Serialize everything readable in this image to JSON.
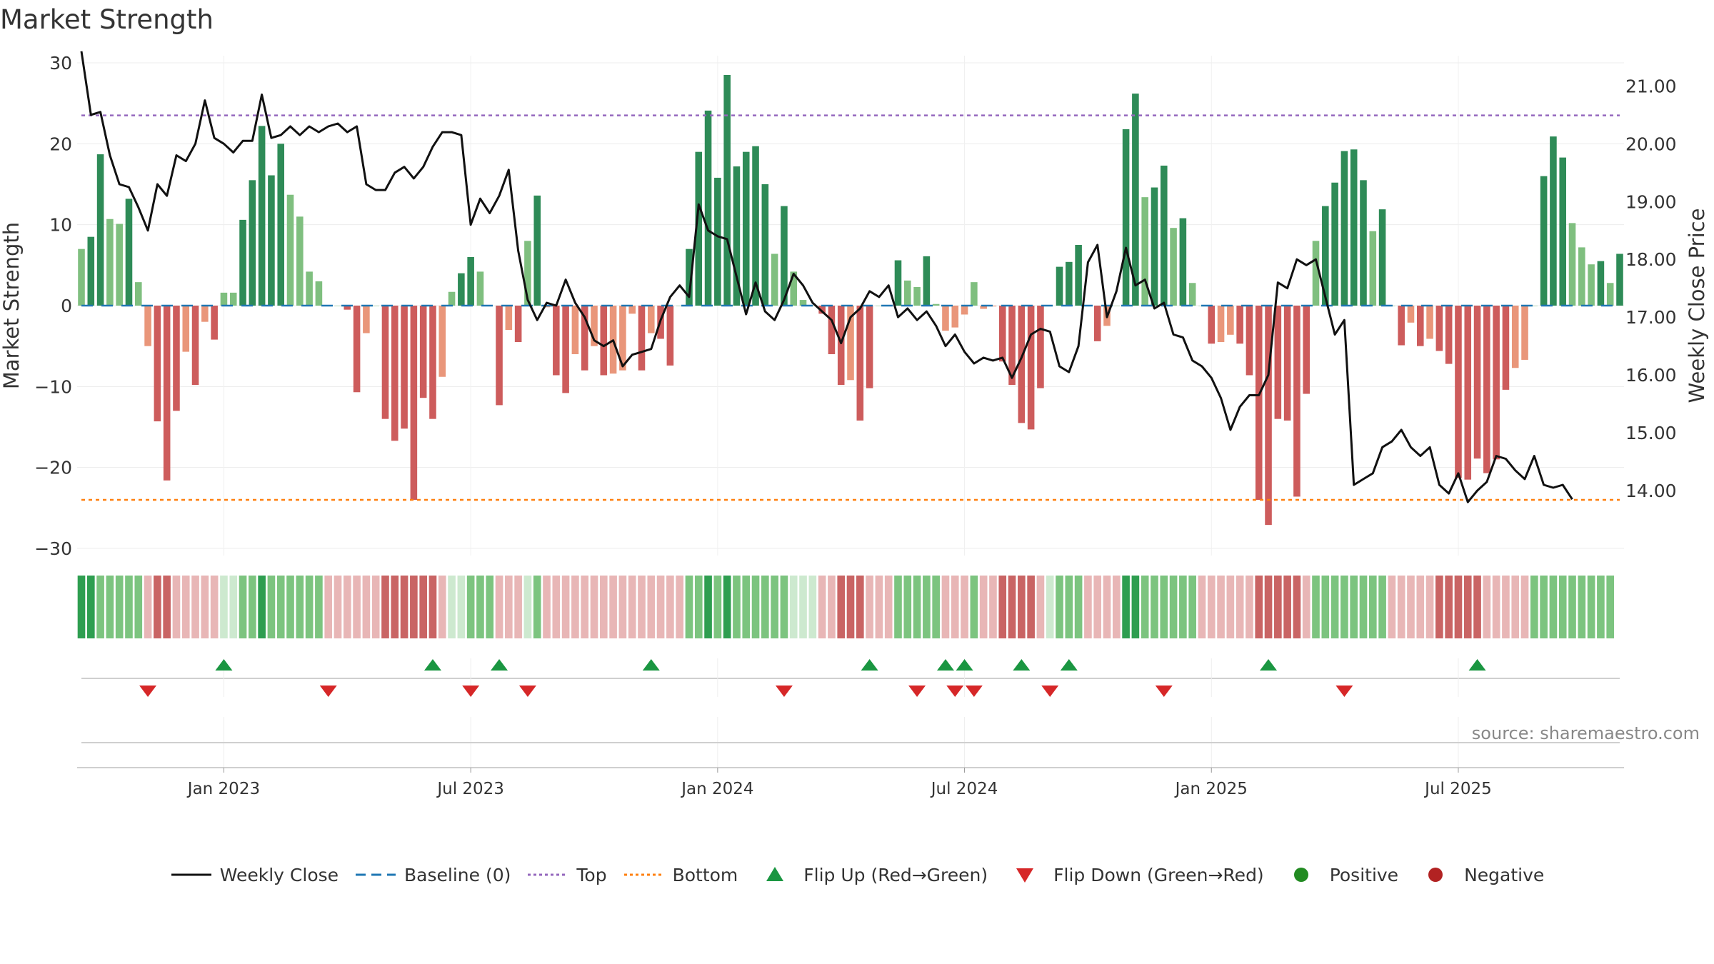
{
  "title": "Market Strength",
  "source": "source: sharemaestro.com",
  "colors": {
    "bar_dark_green": "#2e8b57",
    "bar_light_green": "#7fbf7f",
    "bar_dark_red": "#cd5c5c",
    "bar_light_red": "#e9967a",
    "price_line": "#111111",
    "baseline": "#1f77b4",
    "top": "#9467bd",
    "bottom": "#ff7f0e",
    "flip_up": "#1a9641",
    "flip_down": "#d62728",
    "positive": "#228b22",
    "negative": "#b22222"
  },
  "legend": {
    "weekly_close": "Weekly Close",
    "baseline": "Baseline (0)",
    "top": "Top",
    "bottom": "Bottom",
    "flip_up": "Flip Up (Red→Green)",
    "flip_down": "Flip Down (Green→Red)",
    "positive": "Positive",
    "negative": "Negative"
  },
  "chart_data": {
    "type": "bar",
    "title": "Market Strength",
    "ylabel_left": "Market Strength",
    "ylabel_right": "Weekly Close Price",
    "xlabel": "",
    "ylim_left": [
      -30,
      30
    ],
    "yticks_left": [
      "30",
      "20",
      "10",
      "0",
      "−10",
      "−20",
      "−30"
    ],
    "ylim_right": [
      13.0,
      21.4
    ],
    "yticks_right": [
      "21.00",
      "20.00",
      "19.00",
      "18.00",
      "17.00",
      "16.00",
      "15.00",
      "14.00"
    ],
    "x_tick_labels": [
      "Jan 2023",
      "Jul 2023",
      "Jan 2024",
      "Jul 2024",
      "Jan 2025",
      "Jul 2025"
    ],
    "x_tick_weeks": [
      15,
      41,
      67,
      93,
      119,
      145
    ],
    "top_level": 23.5,
    "bottom_level": -24,
    "baseline": 0,
    "series": [
      {
        "name": "Market Strength",
        "values": [
          7,
          8.5,
          18.7,
          10.7,
          10.1,
          13.2,
          2.9,
          -5,
          -14.3,
          -21.6,
          -13,
          -5.7,
          -9.8,
          -2,
          -4.2,
          1.6,
          1.6,
          10.6,
          15.5,
          22.2,
          16.1,
          20,
          13.7,
          11,
          4.2,
          3,
          0,
          0,
          -0.5,
          -10.7,
          -3.4,
          0,
          -14,
          -16.7,
          -15.2,
          -24,
          -11.4,
          -14,
          -8.8,
          1.7,
          4,
          6,
          4.2,
          0,
          -12.3,
          -3,
          -4.5,
          8,
          13.6,
          -0.2,
          -8.6,
          -10.8,
          -6,
          -8,
          -5,
          -8.6,
          -8.4,
          -8,
          -1,
          -8,
          -3.4,
          -4.1,
          -7.4,
          0,
          7,
          19,
          24.1,
          15.8,
          28.5,
          17.2,
          19,
          19.7,
          15,
          6.4,
          12.3,
          4.2,
          0.7,
          0,
          -1,
          -6,
          -9.8,
          -9.2,
          -14.2,
          -10.2,
          0,
          0,
          5.6,
          3.1,
          2.3,
          6.1,
          0.2,
          -3.1,
          -2.7,
          -1.1,
          2.9,
          -0.4,
          -0.1,
          -6.9,
          -9.8,
          -14.5,
          -15.3,
          -10.2,
          0,
          4.8,
          5.4,
          7.5,
          0,
          -4.4,
          -2.5,
          0,
          21.8,
          26.2,
          13.4,
          14.6,
          17.3,
          9.6,
          10.8,
          2.8,
          0,
          -4.7,
          -4.5,
          -3.6,
          -4.7,
          -8.6,
          -24,
          -27.1,
          -14,
          -14.2,
          -23.6,
          -10.9,
          8,
          12.3,
          15.2,
          19.1,
          19.3,
          15.5,
          9.2,
          11.9,
          0,
          -4.9,
          -2.1,
          -5,
          -4.1,
          -5.6,
          -7.2,
          -21.3,
          -21.5,
          -18.9,
          -20.7,
          -19,
          -10.4,
          -7.7,
          -6.7,
          0,
          16,
          20.9,
          18.3,
          10.2,
          7.2,
          5.1,
          5.5,
          2.8,
          6.4
        ]
      },
      {
        "name": "Weekly Close",
        "values": [
          21.6,
          20.5,
          20.55,
          19.8,
          19.3,
          19.25,
          18.9,
          18.5,
          19.3,
          19.1,
          19.8,
          19.7,
          20.0,
          20.75,
          20.1,
          20.0,
          19.85,
          20.05,
          20.05,
          20.85,
          20.1,
          20.15,
          20.3,
          20.15,
          20.3,
          20.2,
          20.3,
          20.35,
          20.2,
          20.3,
          19.3,
          19.2,
          19.2,
          19.5,
          19.6,
          19.4,
          19.6,
          19.95,
          20.2,
          20.2,
          20.15,
          18.6,
          19.05,
          18.8,
          19.1,
          19.55,
          18.15,
          17.3,
          16.95,
          17.25,
          17.2,
          17.65,
          17.25,
          17.0,
          16.6,
          16.5,
          16.6,
          16.15,
          16.35,
          16.4,
          16.45,
          16.95,
          17.35,
          17.55,
          17.35,
          18.95,
          18.5,
          18.4,
          18.35,
          17.7,
          17.05,
          17.6,
          17.1,
          16.95,
          17.3,
          17.75,
          17.55,
          17.25,
          17.1,
          16.95,
          16.55,
          17.0,
          17.15,
          17.45,
          17.35,
          17.55,
          17.0,
          17.15,
          16.95,
          17.1,
          16.85,
          16.5,
          16.7,
          16.4,
          16.2,
          16.3,
          16.25,
          16.3,
          15.95,
          16.3,
          16.7,
          16.8,
          16.75,
          16.15,
          16.05,
          16.5,
          17.95,
          18.25,
          17.0,
          17.45,
          18.2,
          17.55,
          17.65,
          17.15,
          17.25,
          16.7,
          16.65,
          16.25,
          16.15,
          15.95,
          15.6,
          15.05,
          15.45,
          15.65,
          15.65,
          16.0,
          17.6,
          17.5,
          18.0,
          17.9,
          18.0,
          17.35,
          16.7,
          16.95,
          14.1,
          14.2,
          14.3,
          14.75,
          14.85,
          15.05,
          14.75,
          14.6,
          14.75,
          14.1,
          13.95,
          14.3,
          13.8,
          14.0,
          14.15,
          14.6,
          14.55,
          14.35,
          14.2,
          14.6,
          14.1,
          14.05,
          14.1,
          13.85
        ]
      }
    ],
    "state_strip": [
      2,
      2,
      1,
      1,
      1,
      1,
      1,
      -1,
      -2,
      -2,
      -1,
      -1,
      -1,
      -1,
      -1,
      0,
      0,
      1,
      1,
      2,
      1,
      1,
      1,
      1,
      1,
      1,
      -1,
      -1,
      -1,
      -1,
      -1,
      -1,
      -2,
      -2,
      -2,
      -2,
      -2,
      -2,
      -1,
      0,
      0,
      1,
      1,
      1,
      -1,
      -1,
      -1,
      0,
      1,
      -1,
      -1,
      -1,
      -1,
      -1,
      -1,
      -1,
      -1,
      -1,
      -1,
      -1,
      -1,
      -1,
      -1,
      -1,
      1,
      1,
      2,
      1,
      2,
      1,
      1,
      1,
      1,
      1,
      1,
      0,
      0,
      0,
      -1,
      -1,
      -2,
      -2,
      -2,
      -1,
      -1,
      -1,
      1,
      1,
      1,
      1,
      1,
      -1,
      -1,
      -1,
      1,
      -1,
      -1,
      -2,
      -2,
      -2,
      -2,
      -1,
      0,
      1,
      1,
      1,
      -1,
      -1,
      -1,
      -1,
      2,
      2,
      1,
      1,
      1,
      1,
      1,
      1,
      -1,
      -1,
      -1,
      -1,
      -1,
      -1,
      -2,
      -2,
      -2,
      -2,
      -2,
      -1,
      1,
      1,
      1,
      1,
      1,
      1,
      1,
      1,
      -1,
      -1,
      -1,
      -1,
      -1,
      -2,
      -2,
      -2,
      -2,
      -2,
      -1,
      -1,
      -1,
      -1,
      -1,
      1,
      1,
      1,
      1,
      1,
      1,
      1,
      1,
      1
    ],
    "flip_up_weeks": [
      15,
      37,
      44,
      60,
      83,
      91,
      93,
      99,
      104,
      125,
      147
    ],
    "flip_down_weeks": [
      7,
      26,
      41,
      47,
      74,
      88,
      92,
      94,
      102,
      114,
      133
    ]
  }
}
